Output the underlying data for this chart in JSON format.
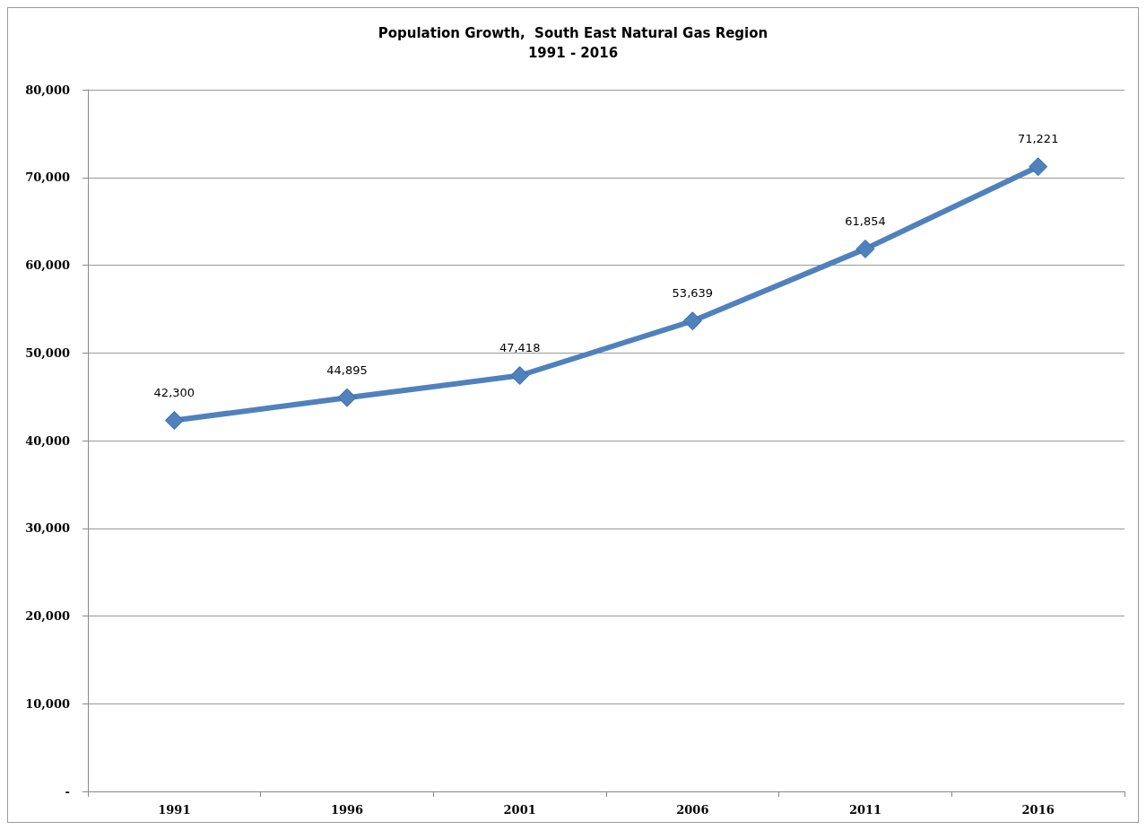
{
  "chart_data": {
    "type": "line",
    "title": "Population Growth,  South East Natural Gas Region\n1991 - 2016",
    "categories": [
      "1991",
      "1996",
      "2001",
      "2006",
      "2011",
      "2016"
    ],
    "series": [
      {
        "color": "#4f81bd",
        "values": [
          42300,
          44895,
          47418,
          53639,
          61854,
          71221
        ],
        "value_labels": [
          "42,300",
          "44,895",
          "47,418",
          "53,639",
          "61,854",
          "71,221"
        ]
      }
    ],
    "ylim": [
      0,
      80000
    ],
    "yticks": [
      {
        "value": 0,
        "label": "-"
      },
      {
        "value": 10000,
        "label": "10,000"
      },
      {
        "value": 20000,
        "label": "20,000"
      },
      {
        "value": 30000,
        "label": "30,000"
      },
      {
        "value": 40000,
        "label": "40,000"
      },
      {
        "value": 50000,
        "label": "50,000"
      },
      {
        "value": 60000,
        "label": "60,000"
      },
      {
        "value": 70000,
        "label": "70,000"
      },
      {
        "value": 80000,
        "label": "80,000"
      }
    ],
    "grid": "y",
    "marker": "diamond",
    "line_style": "solid"
  }
}
